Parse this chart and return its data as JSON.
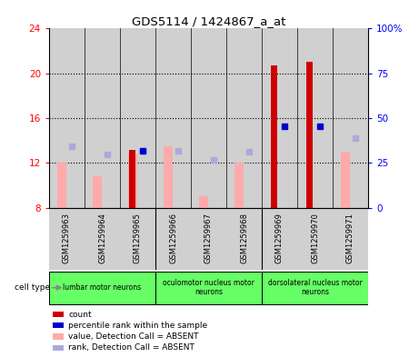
{
  "title": "GDS5114 / 1424867_a_at",
  "samples": [
    "GSM1259963",
    "GSM1259964",
    "GSM1259965",
    "GSM1259966",
    "GSM1259967",
    "GSM1259968",
    "GSM1259969",
    "GSM1259970",
    "GSM1259971"
  ],
  "count_values": [
    8.0,
    8.0,
    13.2,
    8.0,
    8.0,
    8.0,
    20.7,
    21.0,
    8.0
  ],
  "rank_values": [
    13.5,
    12.8,
    13.05,
    13.1,
    12.3,
    13.0,
    15.3,
    15.3,
    14.2
  ],
  "value_absent": [
    12.0,
    10.8,
    12.75,
    13.5,
    9.0,
    12.0,
    8.0,
    8.0,
    13.0
  ],
  "rank_absent": [
    13.5,
    12.8,
    13.05,
    13.1,
    12.3,
    13.0,
    8.0,
    8.0,
    14.2
  ],
  "has_count": [
    false,
    false,
    true,
    false,
    false,
    false,
    true,
    true,
    false
  ],
  "has_rank": [
    false,
    false,
    true,
    false,
    false,
    false,
    true,
    true,
    false
  ],
  "ylim_left": [
    8,
    24
  ],
  "ylim_right": [
    0,
    100
  ],
  "yticks_left": [
    8,
    12,
    16,
    20,
    24
  ],
  "yticks_right": [
    0,
    25,
    50,
    75,
    100
  ],
  "ytick_right_labels": [
    "0",
    "25",
    "50",
    "75",
    "100%"
  ],
  "color_count": "#cc0000",
  "color_rank": "#0000cc",
  "color_value_absent": "#ffaaaa",
  "color_rank_absent": "#aaaadd",
  "col_bg": "#d0d0d0",
  "plot_bg": "#ffffff",
  "cell_type_groups": [
    {
      "label": "lumbar motor neurons",
      "start": 0,
      "end": 3
    },
    {
      "label": "oculomotor nucleus motor\nneurons",
      "start": 3,
      "end": 6
    },
    {
      "label": "dorsolateral nucleus motor\nneurons",
      "start": 6,
      "end": 9
    }
  ],
  "cell_type_color": "#66ff66",
  "bar_width": 0.25,
  "legend_items": [
    {
      "color": "#cc0000",
      "label": "count"
    },
    {
      "color": "#0000cc",
      "label": "percentile rank within the sample"
    },
    {
      "color": "#ffaaaa",
      "label": "value, Detection Call = ABSENT"
    },
    {
      "color": "#aaaadd",
      "label": "rank, Detection Call = ABSENT"
    }
  ]
}
